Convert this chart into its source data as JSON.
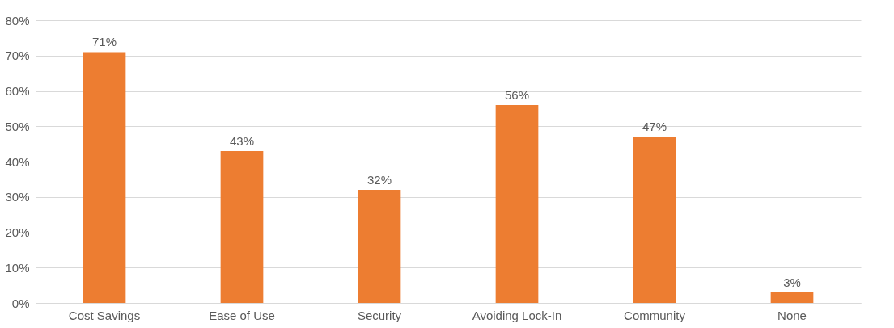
{
  "chart_data": {
    "type": "bar",
    "categories": [
      "Cost Savings",
      "Ease of Use",
      "Security",
      "Avoiding Lock-In",
      "Community",
      "None"
    ],
    "values": [
      71,
      43,
      32,
      56,
      47,
      3
    ],
    "value_labels": [
      "71%",
      "43%",
      "32%",
      "56%",
      "47%",
      "3%"
    ],
    "color": "#ed7d31",
    "ylim": [
      0,
      80
    ],
    "yticks": [
      {
        "value": 0,
        "label": "0%"
      },
      {
        "value": 10,
        "label": "10%"
      },
      {
        "value": 20,
        "label": "20%"
      },
      {
        "value": 30,
        "label": "30%"
      },
      {
        "value": 40,
        "label": "40%"
      },
      {
        "value": 50,
        "label": "50%"
      },
      {
        "value": 60,
        "label": "60%"
      },
      {
        "value": 70,
        "label": "70%"
      },
      {
        "value": 80,
        "label": "80%"
      }
    ],
    "grid": "y"
  }
}
